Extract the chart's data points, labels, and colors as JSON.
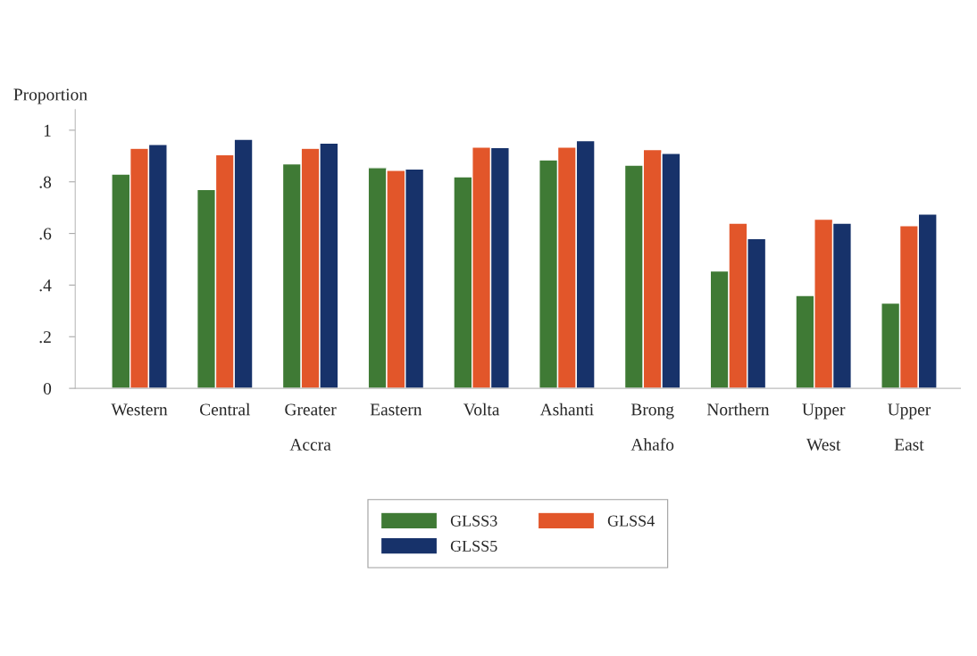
{
  "chart_data": {
    "type": "bar",
    "ylabel": "Proportion",
    "categories": [
      "Western",
      "Central",
      "Greater\nAccra",
      "Eastern",
      "Volta",
      "Ashanti",
      "Brong\nAhafo",
      "Northern",
      "Upper\nWest",
      "Upper\nEast"
    ],
    "series": [
      {
        "name": "GLSS3",
        "color": "#3f7a35",
        "values": [
          0.83,
          0.77,
          0.87,
          0.855,
          0.82,
          0.885,
          0.865,
          0.455,
          0.36,
          0.33
        ]
      },
      {
        "name": "GLSS4",
        "color": "#e2562a",
        "values": [
          0.93,
          0.905,
          0.93,
          0.845,
          0.935,
          0.935,
          0.925,
          0.64,
          0.655,
          0.63
        ]
      },
      {
        "name": "GLSS5",
        "color": "#17326a",
        "values": [
          0.945,
          0.965,
          0.95,
          0.85,
          0.933,
          0.96,
          0.91,
          0.58,
          0.64,
          0.675
        ]
      }
    ],
    "ylim": [
      0,
      1.08
    ],
    "yticks": [
      0,
      {
        "value": 0.2,
        "label": ".2"
      },
      {
        "value": 0.4,
        "label": ".4"
      },
      {
        "value": 0.6,
        "label": ".6"
      },
      {
        "value": 0.8,
        "label": ".8"
      },
      1
    ],
    "grid": false,
    "legend": "bottom"
  }
}
